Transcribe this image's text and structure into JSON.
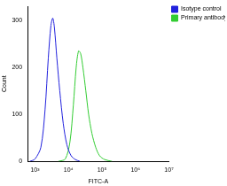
{
  "chart_data": {
    "type": "line",
    "x_label": "FITC-A",
    "y_label": "Count",
    "log": "x",
    "xlim": [
      600,
      10000000
    ],
    "xticks": [
      {
        "value": 1000,
        "label": "10³"
      },
      {
        "value": 10000,
        "label": "10⁴"
      },
      {
        "value": 100000,
        "label": "10⁵"
      },
      {
        "value": 1000000,
        "label": "10⁶"
      },
      {
        "value": 10000000,
        "label": "10⁷"
      }
    ],
    "ylim": [
      0,
      330
    ],
    "yticks": [
      0,
      100,
      200,
      300
    ],
    "grid": false,
    "legend": "top-right",
    "series": [
      {
        "name": "Isotype control",
        "color": "#2222dd",
        "x": [
          700,
          1000,
          1500,
          2000,
          2500,
          3000,
          3400,
          3800,
          4500,
          5500,
          7000,
          9000,
          12000,
          16000,
          22000
        ],
        "values": [
          0,
          5,
          30,
          110,
          220,
          290,
          305,
          285,
          220,
          150,
          80,
          35,
          12,
          4,
          0
        ]
      },
      {
        "name": "Primary antibody",
        "color": "#33cc33",
        "x": [
          5000,
          8000,
          11000,
          14000,
          17000,
          20000,
          23000,
          27000,
          33000,
          40000,
          50000,
          65000,
          85000,
          120000,
          200000
        ],
        "values": [
          0,
          5,
          40,
          120,
          200,
          235,
          230,
          200,
          150,
          100,
          60,
          30,
          12,
          4,
          0
        ]
      }
    ]
  }
}
